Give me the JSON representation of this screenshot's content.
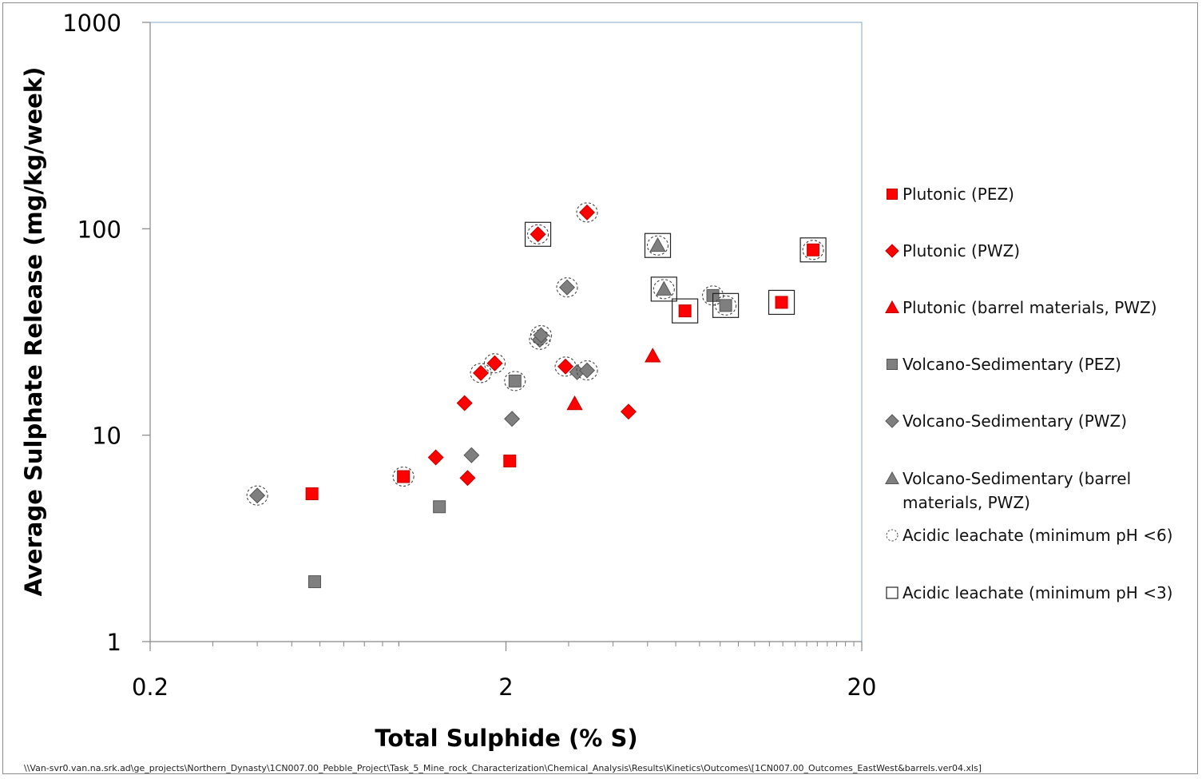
{
  "chart_data": {
    "type": "scatter",
    "xlabel": "Total Sulphide (% S)",
    "ylabel": "Average Sulphate Release (mg/kg/week)",
    "x_scale": "log",
    "y_scale": "log",
    "xlim": [
      0.2,
      20
    ],
    "ylim": [
      1,
      1000
    ],
    "x_ticks": [
      "0.2",
      "2",
      "20"
    ],
    "y_ticks": [
      "1",
      "10",
      "100",
      "1000"
    ],
    "grid": false,
    "legend_position": "right",
    "series": [
      {
        "name": "Plutonic (PEZ)",
        "marker": "square",
        "color": "#ff0000",
        "points": [
          {
            "x": 0.57,
            "y": 5.2
          },
          {
            "x": 1.03,
            "y": 6.3,
            "acidic_ph6": true
          },
          {
            "x": 2.05,
            "y": 7.5
          },
          {
            "x": 6.37,
            "y": 40,
            "acidic_ph3": true
          },
          {
            "x": 11.9,
            "y": 44,
            "acidic_ph3": true
          },
          {
            "x": 14.6,
            "y": 79,
            "acidic_ph3": true,
            "acidic_ph6": true
          }
        ]
      },
      {
        "name": "Plutonic (PWZ)",
        "marker": "diamond",
        "color": "#ff0000",
        "points": [
          {
            "x": 1.56,
            "y": 6.2
          },
          {
            "x": 1.27,
            "y": 7.8
          },
          {
            "x": 1.53,
            "y": 14.3
          },
          {
            "x": 1.7,
            "y": 20,
            "acidic_ph6": true
          },
          {
            "x": 1.86,
            "y": 22.3,
            "acidic_ph6": true
          },
          {
            "x": 2.46,
            "y": 94,
            "acidic_ph3": true,
            "acidic_ph6": true
          },
          {
            "x": 2.94,
            "y": 21.5,
            "acidic_ph6": true
          },
          {
            "x": 3.38,
            "y": 120,
            "acidic_ph6": true
          },
          {
            "x": 4.42,
            "y": 13
          }
        ]
      },
      {
        "name": "Plutonic (barrel materials, PWZ)",
        "marker": "triangle",
        "color": "#ff0000",
        "points": [
          {
            "x": 3.12,
            "y": 14.2
          },
          {
            "x": 5.17,
            "y": 24.2
          }
        ]
      },
      {
        "name": "Volcano-Sedimentary (PEZ)",
        "marker": "square",
        "color": "#7f7f7f",
        "points": [
          {
            "x": 0.58,
            "y": 1.95
          },
          {
            "x": 1.3,
            "y": 4.5
          },
          {
            "x": 2.12,
            "y": 18.3,
            "acidic_ph6": true
          },
          {
            "x": 7.63,
            "y": 47.5,
            "acidic_ph6": true
          },
          {
            "x": 8.29,
            "y": 42.5,
            "acidic_ph3": true,
            "acidic_ph6": true
          }
        ]
      },
      {
        "name": "Volcano-Sedimentary (PWZ)",
        "marker": "diamond",
        "color": "#7f7f7f",
        "points": [
          {
            "x": 0.4,
            "y": 5.1,
            "acidic_ph6": true
          },
          {
            "x": 1.6,
            "y": 8
          },
          {
            "x": 2.08,
            "y": 12
          },
          {
            "x": 2.49,
            "y": 29,
            "acidic_ph6": true
          },
          {
            "x": 2.51,
            "y": 30.5,
            "acidic_ph6": true
          },
          {
            "x": 2.97,
            "y": 52,
            "acidic_ph6": true
          },
          {
            "x": 3.17,
            "y": 20.2
          },
          {
            "x": 3.38,
            "y": 20.6,
            "acidic_ph6": true
          }
        ]
      },
      {
        "name": "Volcano-Sedimentary (barrel materials, PWZ)",
        "marker": "triangle",
        "color": "#7f7f7f",
        "points": [
          {
            "x": 5.34,
            "y": 83,
            "acidic_ph3": true,
            "acidic_ph6": true
          },
          {
            "x": 5.56,
            "y": 51,
            "acidic_ph3": true,
            "acidic_ph6": true
          }
        ]
      }
    ],
    "overlay_series": [
      {
        "name": "Acidic leachate (minimum pH <6)",
        "marker": "dashed-circle"
      },
      {
        "name": "Acidic leachate (minimum pH <3)",
        "marker": "open-square"
      }
    ],
    "colors": {
      "red": "#ff0000",
      "gray": "#7f7f7f",
      "axis": "#86a8c8"
    }
  },
  "footer": {
    "path": "\\\\Van-svr0.van.na.srk.ad\\ge_projects\\Northern_Dynasty\\1CN007.00_Pebble_Project\\Task_5_Mine_rock_Characterization\\Chemical_Analysis\\Results\\Kinetics\\Outcomes\\[1CN007.00_Outcomes_EastWest&barrels.ver04.xls]"
  }
}
